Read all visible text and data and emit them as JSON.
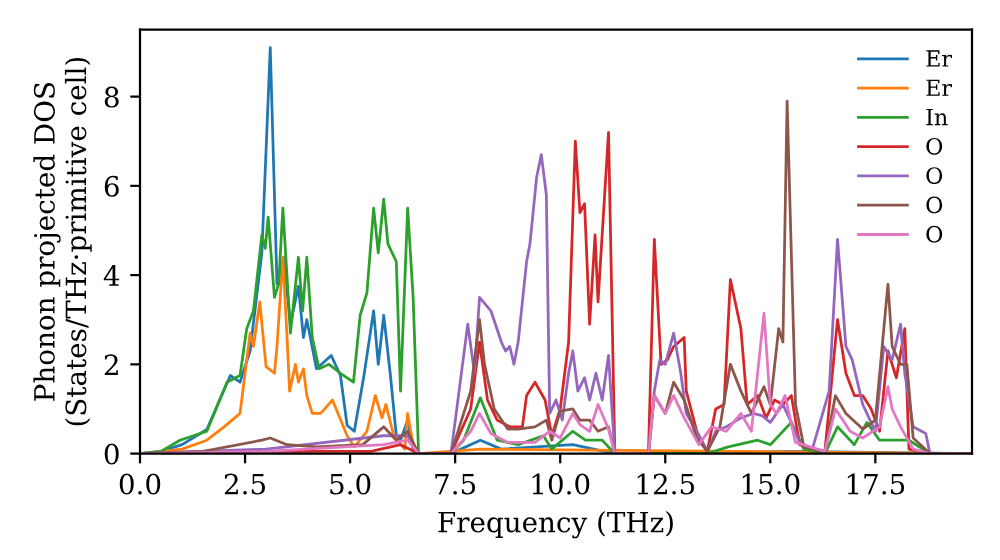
{
  "chart_data": {
    "type": "line",
    "xlabel": "Frequency (THz)",
    "ylabel": "Phonon projected DOS\n(States/THz·primitive cell)",
    "xlim": [
      0,
      19.8
    ],
    "ylim": [
      0,
      9.5
    ],
    "xticks": [
      {
        "value": 0,
        "label": "0.0"
      },
      2.5,
      {
        "value": 5,
        "label": "5.0"
      },
      7.5,
      {
        "value": 10,
        "label": "10.0"
      },
      12.5,
      {
        "value": 15,
        "label": "15.0"
      },
      17.5
    ],
    "yticks": [
      0,
      2,
      4,
      6,
      8
    ],
    "grid": false,
    "legend": "top right",
    "marker": "none",
    "line_style": "solid",
    "series": [
      {
        "name": "Er",
        "color": "#1f77b4",
        "x": [
          0,
          0.5,
          1.0,
          1.59,
          2.15,
          2.38,
          2.62,
          2.9,
          3.1,
          3.26,
          3.42,
          3.58,
          3.77,
          3.89,
          3.97,
          4.2,
          4.55,
          4.77,
          4.93,
          5.1,
          5.33,
          5.56,
          5.67,
          5.8,
          5.96,
          6.1,
          6.2,
          6.37,
          6.5,
          6.63,
          7.4,
          8.1,
          8.6,
          10.3,
          11.3,
          12.1,
          15.5,
          19.8
        ],
        "values": [
          0,
          0.05,
          0.2,
          0.54,
          1.75,
          1.6,
          2.3,
          4.5,
          9.1,
          3.8,
          4.4,
          2.9,
          3.75,
          2.6,
          3.0,
          1.9,
          2.2,
          1.75,
          0.63,
          0.5,
          1.75,
          3.2,
          2.0,
          3.1,
          1.75,
          0.4,
          0.3,
          0.75,
          0.1,
          0,
          0,
          0.3,
          0.1,
          0.2,
          0,
          0,
          0.05,
          0
        ]
      },
      {
        "name": "Er",
        "color": "#ff7f0e",
        "x": [
          0,
          1.0,
          1.59,
          2.0,
          2.38,
          2.62,
          2.7,
          2.85,
          3.0,
          3.2,
          3.26,
          3.4,
          3.5,
          3.56,
          3.7,
          3.77,
          3.89,
          3.97,
          4.1,
          4.3,
          4.58,
          4.93,
          5.1,
          5.4,
          5.6,
          5.76,
          5.85,
          6.04,
          6.3,
          6.37,
          6.5,
          6.63,
          8.1,
          19.8
        ],
        "values": [
          0,
          0.1,
          0.3,
          0.6,
          0.9,
          2.7,
          2.4,
          3.4,
          1.95,
          1.8,
          2.4,
          4.4,
          2.6,
          1.4,
          2.0,
          1.6,
          1.9,
          1.3,
          0.9,
          0.9,
          1.2,
          0.4,
          0.15,
          0.5,
          1.3,
          0.8,
          1.1,
          0.4,
          0.1,
          0.9,
          0.2,
          0,
          0.1,
          0
        ]
      },
      {
        "name": "In",
        "color": "#2ca02c",
        "x": [
          0,
          0.5,
          0.95,
          1.59,
          2.07,
          2.38,
          2.54,
          2.7,
          2.9,
          2.98,
          3.05,
          3.2,
          3.3,
          3.4,
          3.58,
          3.77,
          3.87,
          3.97,
          4.1,
          4.26,
          4.5,
          4.77,
          5.08,
          5.24,
          5.4,
          5.56,
          5.67,
          5.8,
          5.9,
          6.1,
          6.2,
          6.37,
          6.5,
          6.63,
          7.4,
          7.7,
          8.1,
          8.5,
          9.0,
          9.6,
          9.8,
          10.3,
          10.6,
          11.0,
          11.3,
          12.1,
          13.5,
          14.0,
          14.7,
          15.0,
          15.5,
          15.8,
          16.3,
          16.6,
          17.0,
          17.3,
          17.6,
          18.3,
          18.8,
          19.8
        ],
        "values": [
          0,
          0.05,
          0.3,
          0.5,
          1.6,
          1.75,
          2.8,
          3.2,
          4.9,
          4.6,
          5.3,
          3.5,
          3.8,
          5.5,
          2.7,
          4.4,
          3.2,
          4.4,
          2.6,
          1.9,
          2.0,
          1.8,
          1.6,
          3.1,
          3.6,
          5.5,
          4.5,
          5.7,
          4.7,
          4.3,
          1.4,
          5.5,
          3.5,
          0,
          0,
          0.3,
          1.25,
          0.3,
          0.2,
          0.4,
          0.1,
          0.5,
          0.3,
          0.3,
          0,
          0,
          0,
          0.15,
          0.3,
          0.2,
          0.7,
          0.1,
          0,
          0.6,
          0.2,
          0.7,
          0.3,
          0.3,
          0,
          0
        ]
      },
      {
        "name": "O",
        "color": "#d62728",
        "x": [
          0,
          3.0,
          5.5,
          6.2,
          6.63,
          7.4,
          7.87,
          8.08,
          8.27,
          8.5,
          8.8,
          9.1,
          9.2,
          9.4,
          9.64,
          9.8,
          10.0,
          10.2,
          10.36,
          10.47,
          10.58,
          10.7,
          10.83,
          10.9,
          11.15,
          11.3,
          12.1,
          12.24,
          12.4,
          12.55,
          12.7,
          12.95,
          13.0,
          13.25,
          13.5,
          13.7,
          13.9,
          14.05,
          14.3,
          14.45,
          14.7,
          14.9,
          15.1,
          15.3,
          15.5,
          15.7,
          16.0,
          16.3,
          16.6,
          16.8,
          17.0,
          17.2,
          17.4,
          17.6,
          17.8,
          18.0,
          18.2,
          18.3,
          18.8,
          19.8
        ],
        "values": [
          0,
          0.05,
          0.05,
          0.2,
          0,
          0,
          1.0,
          2.5,
          1.2,
          0.75,
          0.6,
          0.6,
          1.3,
          1.6,
          1.2,
          0.4,
          1.0,
          2.5,
          7.0,
          5.4,
          5.6,
          2.9,
          4.9,
          3.4,
          7.2,
          0,
          0,
          4.8,
          2.0,
          2.1,
          2.4,
          2.6,
          1.4,
          0.5,
          0.05,
          1.0,
          1.1,
          3.9,
          2.8,
          1.1,
          1.3,
          0.8,
          1.2,
          1.1,
          1.3,
          0.2,
          0.1,
          0.05,
          3.0,
          1.8,
          1.3,
          1.3,
          1.0,
          0.5,
          2.3,
          1.7,
          2.8,
          0.1,
          0,
          0
        ]
      },
      {
        "name": "O",
        "color": "#9467bd",
        "x": [
          0,
          3.0,
          5.8,
          6.37,
          6.63,
          7.4,
          7.8,
          7.96,
          8.08,
          8.35,
          8.6,
          8.7,
          8.8,
          8.9,
          9.0,
          9.2,
          9.28,
          9.44,
          9.55,
          9.67,
          9.75,
          9.9,
          10.05,
          10.2,
          10.3,
          10.42,
          10.58,
          10.7,
          10.85,
          11.0,
          11.15,
          11.3,
          12.1,
          12.24,
          12.37,
          12.5,
          12.7,
          12.87,
          13.0,
          13.25,
          13.5,
          13.7,
          13.95,
          14.3,
          14.6,
          14.8,
          15.0,
          15.3,
          15.5,
          15.7,
          16.0,
          16.4,
          16.6,
          16.8,
          16.95,
          17.2,
          17.5,
          17.7,
          17.9,
          18.1,
          18.2,
          18.4,
          18.7,
          18.8,
          19.8
        ],
        "values": [
          0,
          0.1,
          0.4,
          0.4,
          0,
          0,
          2.9,
          1.8,
          3.5,
          3.2,
          2.5,
          2.3,
          2.4,
          2.0,
          2.5,
          4.3,
          4.7,
          6.2,
          6.7,
          5.8,
          0.9,
          1.2,
          0.75,
          1.8,
          2.3,
          1.4,
          1.7,
          1.2,
          1.8,
          1.2,
          2.2,
          0,
          0,
          1.4,
          2.1,
          2.0,
          2.7,
          1.8,
          0.9,
          0.5,
          0.05,
          0.5,
          0.6,
          0.8,
          0.9,
          0.85,
          0.7,
          1.1,
          0.7,
          0.25,
          0.1,
          1.4,
          4.8,
          2.4,
          2.1,
          1.1,
          0.5,
          2.4,
          2.1,
          2.9,
          1.8,
          0.6,
          0.45,
          0,
          0
        ]
      },
      {
        "name": "O",
        "color": "#8c564b",
        "x": [
          0,
          1.5,
          2.9,
          3.1,
          3.5,
          4.2,
          5.3,
          5.8,
          6.1,
          6.37,
          6.63,
          7.4,
          7.87,
          8.08,
          8.2,
          8.43,
          8.75,
          9.0,
          9.4,
          9.67,
          9.8,
          10.0,
          10.3,
          10.47,
          10.7,
          10.9,
          11.15,
          11.3,
          12.1,
          12.24,
          12.5,
          12.7,
          12.95,
          13.25,
          13.5,
          13.8,
          14.05,
          14.3,
          14.55,
          14.85,
          15.0,
          15.2,
          15.3,
          15.4,
          15.6,
          15.8,
          16.3,
          16.55,
          16.8,
          17.2,
          17.5,
          17.8,
          17.9,
          18.1,
          18.25,
          18.4,
          18.8,
          19.8
        ],
        "values": [
          0,
          0.05,
          0.3,
          0.35,
          0.2,
          0.15,
          0.2,
          0.6,
          0.3,
          0.5,
          0,
          0,
          1.4,
          3.0,
          2.0,
          1.0,
          0.55,
          0.55,
          0.6,
          0.75,
          0.3,
          0.95,
          1.0,
          0.75,
          0.75,
          0.5,
          0.6,
          0,
          0,
          1.3,
          0.9,
          1.6,
          1.2,
          0.35,
          0.05,
          0.6,
          2.0,
          1.4,
          0.9,
          1.5,
          1.1,
          2.8,
          2.5,
          7.9,
          1.1,
          0.15,
          0.05,
          1.3,
          0.9,
          0.55,
          0.75,
          3.8,
          2.4,
          2.0,
          2.0,
          0.35,
          0,
          0
        ]
      },
      {
        "name": "O",
        "color": "#e377c2",
        "x": [
          0,
          3.0,
          5.8,
          6.37,
          6.63,
          7.4,
          7.87,
          8.08,
          8.35,
          8.75,
          9.4,
          9.75,
          10.0,
          10.3,
          10.47,
          10.7,
          10.9,
          11.15,
          11.3,
          12.1,
          12.24,
          12.5,
          12.7,
          12.95,
          13.3,
          13.6,
          13.95,
          14.3,
          14.55,
          14.85,
          15.0,
          15.15,
          15.35,
          15.6,
          16.3,
          16.55,
          16.9,
          17.2,
          17.6,
          17.8,
          17.9,
          18.1,
          18.4,
          18.8,
          19.8
        ],
        "values": [
          0,
          0.05,
          0.2,
          0.3,
          0,
          0,
          0.5,
          0.9,
          0.45,
          0.25,
          0.25,
          0.5,
          0.35,
          0.9,
          0.65,
          0.5,
          1.1,
          0.55,
          0,
          0,
          1.3,
          0.9,
          1.3,
          0.8,
          0.2,
          0.6,
          0.5,
          0.9,
          0.5,
          3.15,
          1.1,
          0.9,
          1.3,
          0.25,
          0.05,
          1.0,
          0.5,
          0.35,
          0.6,
          1.5,
          1.0,
          0.6,
          0.1,
          0,
          0
        ]
      }
    ]
  }
}
